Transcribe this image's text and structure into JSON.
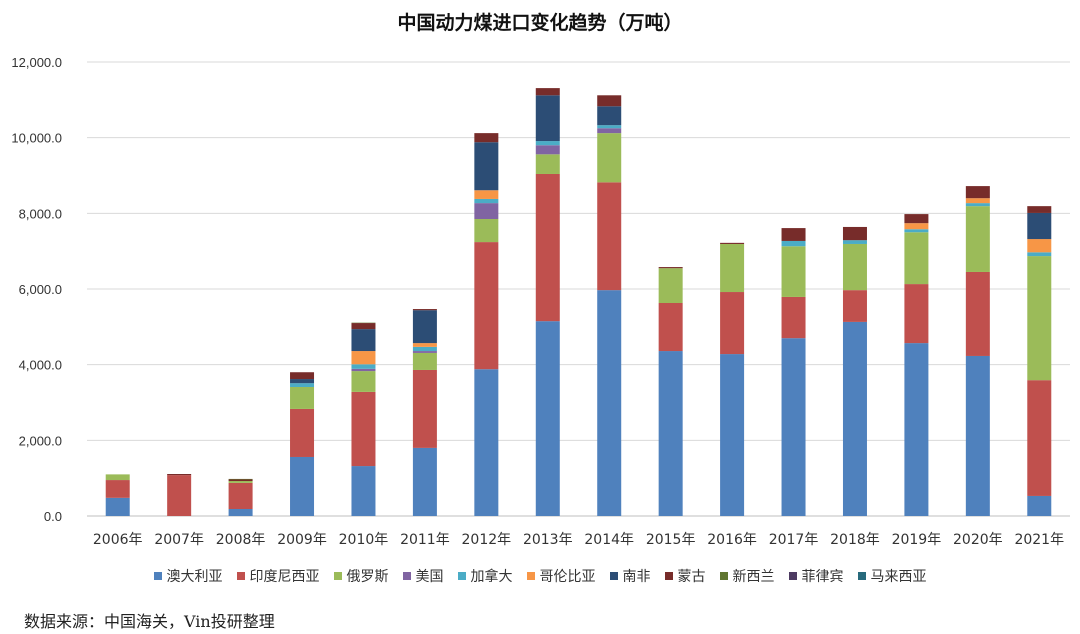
{
  "chart_data": {
    "type": "bar",
    "stacked": true,
    "title": "中国动力煤进口变化趋势（万吨）",
    "xlabel": "",
    "ylabel": "",
    "ylim": [
      0,
      12000
    ],
    "yticks": [
      "0.0",
      "2,000.0",
      "4,000.0",
      "6,000.0",
      "8,000.0",
      "10,000.0",
      "12,000.0"
    ],
    "grid": true,
    "legend_position": "bottom",
    "categories": [
      "2006年",
      "2007年",
      "2008年",
      "2009年",
      "2010年",
      "2011年",
      "2012年",
      "2013年",
      "2014年",
      "2015年",
      "2016年",
      "2017年",
      "2018年",
      "2019年",
      "2020年",
      "2021年"
    ],
    "series": [
      {
        "name": "澳大利亚",
        "color": "#4F81BD",
        "values": [
          480,
          0,
          185,
          1560,
          1320,
          1800,
          3880,
          5150,
          5970,
          4360,
          4280,
          4700,
          5130,
          4570,
          4230,
          530
        ]
      },
      {
        "name": "印度尼西亚",
        "color": "#C0504D",
        "values": [
          470,
          1080,
          690,
          1270,
          1960,
          2060,
          3360,
          3890,
          2850,
          1270,
          1640,
          1090,
          840,
          1560,
          2220,
          3060
        ]
      },
      {
        "name": "俄罗斯",
        "color": "#9BBB59",
        "values": [
          150,
          0,
          50,
          580,
          550,
          450,
          610,
          520,
          1300,
          920,
          1270,
          1340,
          1220,
          1370,
          1740,
          3280
        ]
      },
      {
        "name": "美国",
        "color": "#8064A2",
        "values": [
          0,
          0,
          0,
          0,
          60,
          50,
          420,
          240,
          130,
          0,
          0,
          0,
          0,
          0,
          0,
          0
        ]
      },
      {
        "name": "加拿大",
        "color": "#4BACC6",
        "values": [
          0,
          0,
          0,
          100,
          120,
          110,
          110,
          110,
          80,
          0,
          0,
          140,
          100,
          80,
          80,
          100
        ]
      },
      {
        "name": "哥伦比亚",
        "color": "#F79646",
        "values": [
          0,
          0,
          0,
          0,
          350,
          100,
          230,
          0,
          0,
          0,
          0,
          0,
          0,
          160,
          130,
          350
        ]
      },
      {
        "name": "南非",
        "color": "#2C4D75",
        "values": [
          0,
          0,
          0,
          110,
          580,
          870,
          1270,
          1210,
          500,
          0,
          0,
          0,
          0,
          0,
          0,
          690
        ]
      },
      {
        "name": "蒙古",
        "color": "#772C2A",
        "values": [
          0,
          30,
          40,
          180,
          160,
          30,
          240,
          190,
          290,
          30,
          30,
          340,
          350,
          240,
          320,
          180
        ]
      },
      {
        "name": "新西兰",
        "color": "#5F7530",
        "values": [
          0,
          0,
          15,
          0,
          10,
          0,
          0,
          0,
          0,
          0,
          0,
          0,
          0,
          0,
          0,
          0
        ]
      },
      {
        "name": "菲律宾",
        "color": "#4D3B62",
        "values": [
          0,
          0,
          0,
          0,
          0,
          0,
          0,
          0,
          0,
          0,
          0,
          0,
          0,
          0,
          0,
          0
        ]
      },
      {
        "name": "马来西亚",
        "color": "#276A7C",
        "values": [
          0,
          0,
          0,
          0,
          0,
          0,
          0,
          0,
          0,
          0,
          0,
          0,
          0,
          0,
          0,
          0
        ]
      }
    ]
  },
  "source": "数据来源：中国海关，Vin投研整理"
}
